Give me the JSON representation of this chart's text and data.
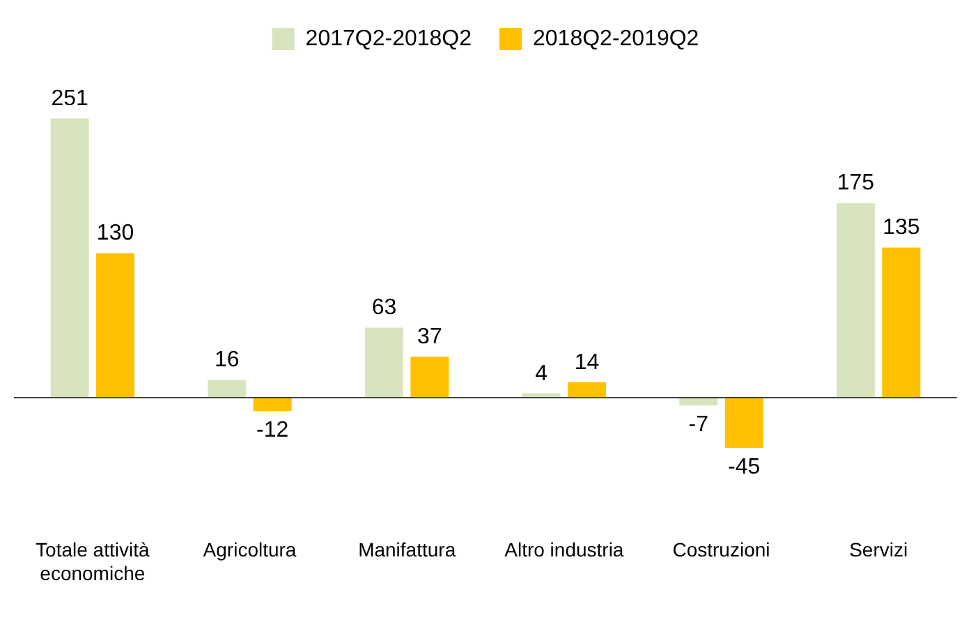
{
  "chart_data": {
    "type": "bar",
    "categories": [
      "Totale attività economiche",
      "Agricoltura",
      "Manifattura",
      "Altro industria",
      "Costruzioni",
      "Servizi"
    ],
    "series": [
      {
        "name": "2017Q2-2018Q2",
        "color": "#d7e4bd",
        "values": [
          251,
          16,
          63,
          4,
          -7,
          175
        ]
      },
      {
        "name": "2018Q2-2019Q2",
        "color": "#ffc000",
        "values": [
          130,
          -12,
          37,
          14,
          -45,
          135
        ]
      }
    ],
    "tick_labels": false,
    "data_labels": true,
    "legend": "top",
    "grid": false
  }
}
